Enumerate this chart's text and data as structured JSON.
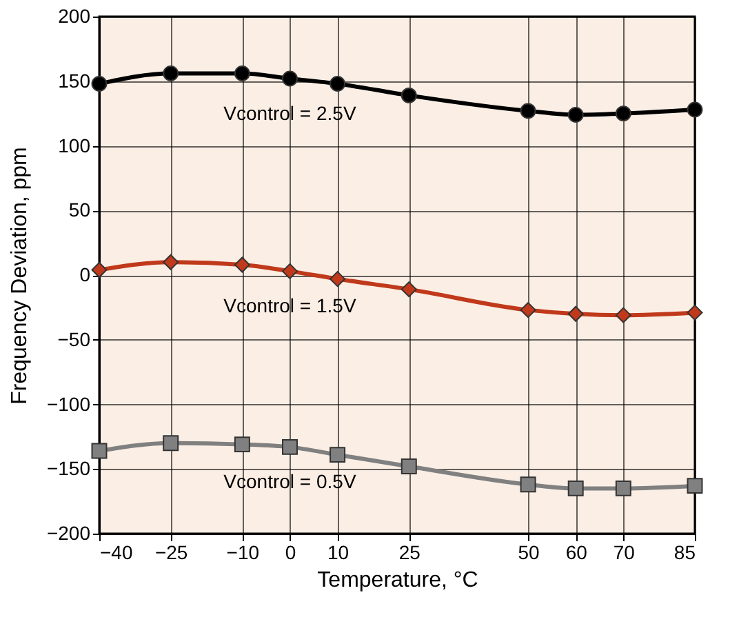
{
  "chart_data": {
    "type": "line",
    "xlabel": "Temperature, °C",
    "ylabel": "Frequency Deviation, ppm",
    "x": [
      -40,
      -25,
      -10,
      0,
      10,
      25,
      50,
      60,
      70,
      85
    ],
    "xlim": [
      -40,
      85
    ],
    "xticks": [
      -40,
      -25,
      -10,
      0,
      10,
      25,
      50,
      60,
      70,
      85
    ],
    "ylim": [
      -200,
      200
    ],
    "yticks": [
      -200,
      -150,
      -100,
      -50,
      0,
      50,
      100,
      150,
      200
    ],
    "grid": true,
    "legend": false,
    "series": [
      {
        "name": "Vcontrol = 2.5V",
        "color": "#000000",
        "marker": "circle",
        "values": [
          148,
          156,
          156,
          152,
          148,
          139,
          127,
          124,
          125,
          128
        ]
      },
      {
        "name": "Vcontrol = 1.5V",
        "color": "#c0391b",
        "marker": "diamond",
        "values": [
          4,
          10,
          8,
          3,
          -3,
          -11,
          -27,
          -30,
          -31,
          -29
        ]
      },
      {
        "name": "Vcontrol = 0.5V",
        "color": "#808080",
        "marker": "square",
        "values": [
          -136,
          -130,
          -131,
          -133,
          -139,
          -148,
          -162,
          -165,
          -165,
          -163
        ]
      }
    ]
  }
}
